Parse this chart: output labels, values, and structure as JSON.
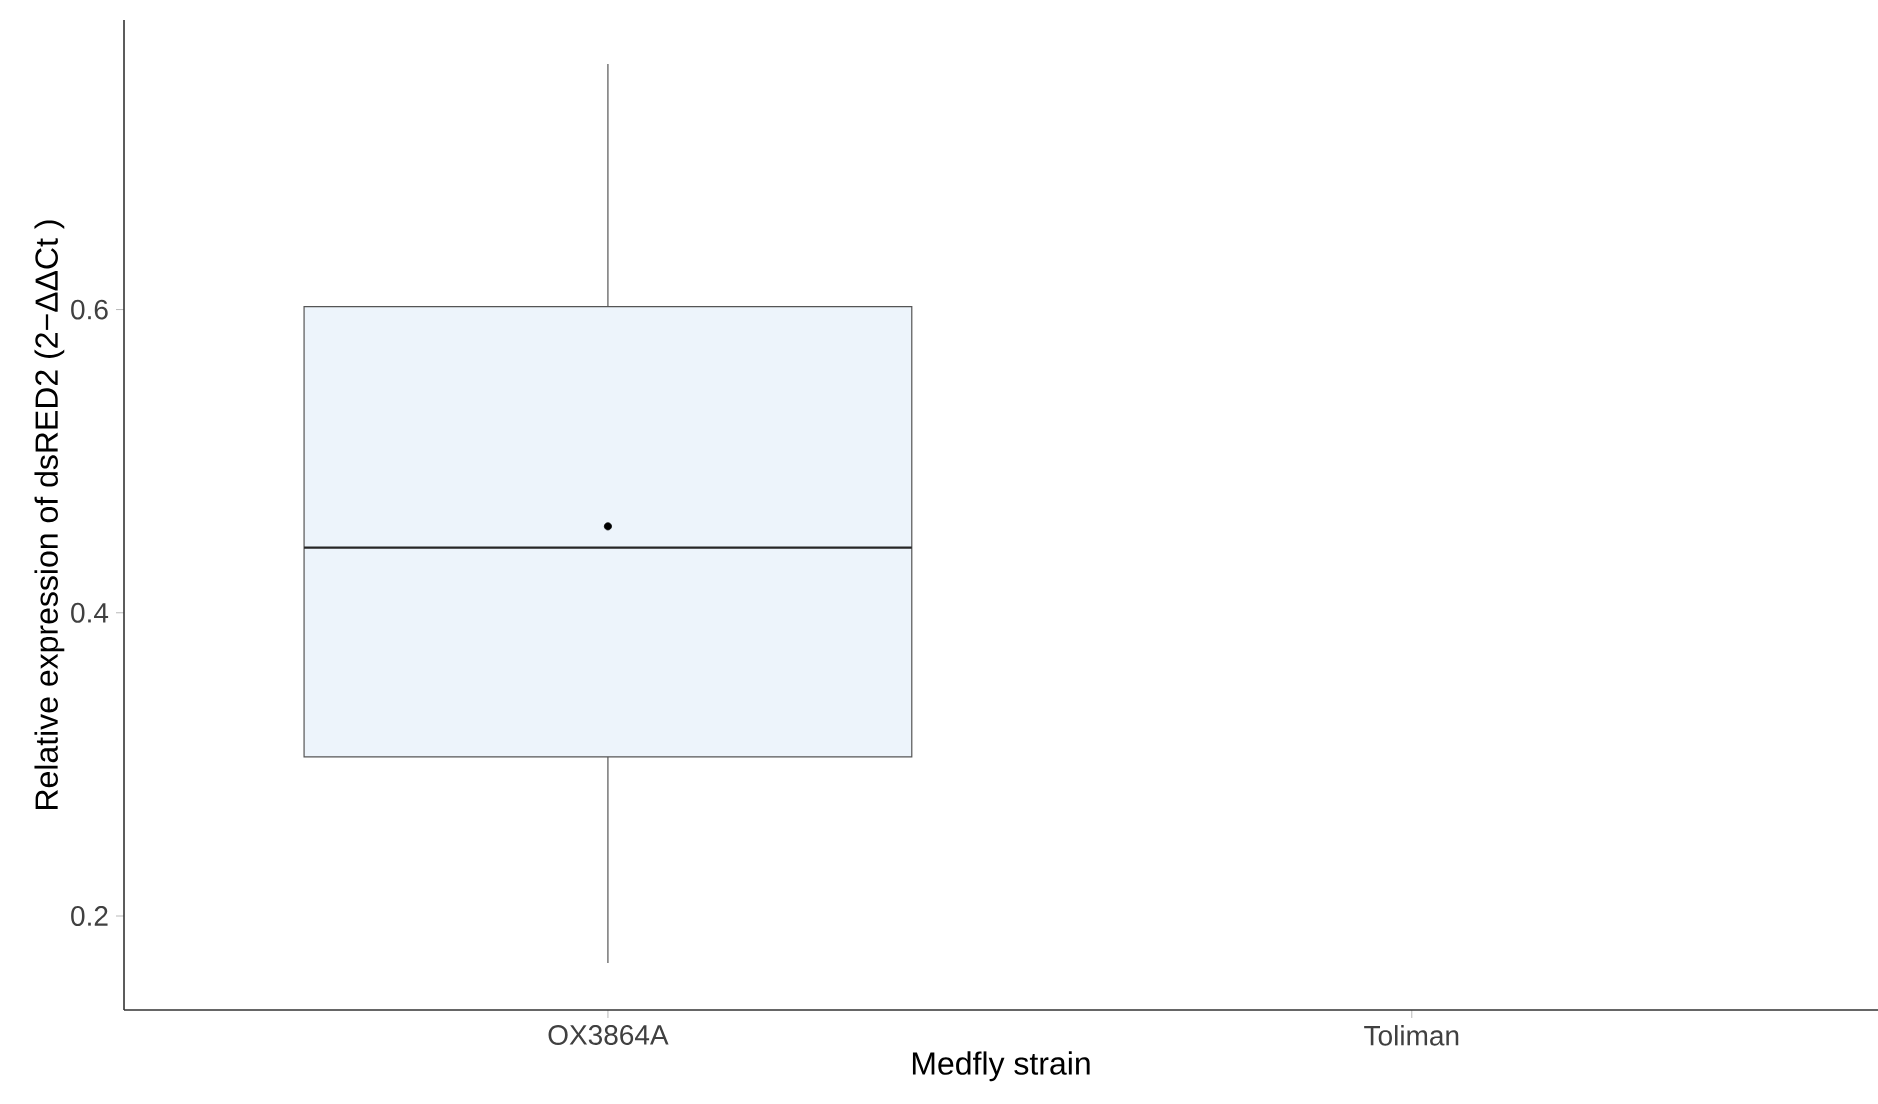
{
  "chart_data": {
    "type": "box",
    "xlabel": "Medfly strain",
    "ylabel": "Relative expression of dsRED2 (2−ΔΔCt )",
    "categories": [
      "OX3864A",
      "Toliman"
    ],
    "boxes": [
      {
        "low": 0.169,
        "q1": 0.305,
        "median": 0.443,
        "q3": 0.602,
        "high": 0.762,
        "mean": 0.457
      },
      null
    ],
    "color": "#edf4fb",
    "ylim": [
      0.138,
      0.791
    ],
    "yticks": [
      0.2,
      0.4,
      0.6
    ],
    "grid": false
  }
}
